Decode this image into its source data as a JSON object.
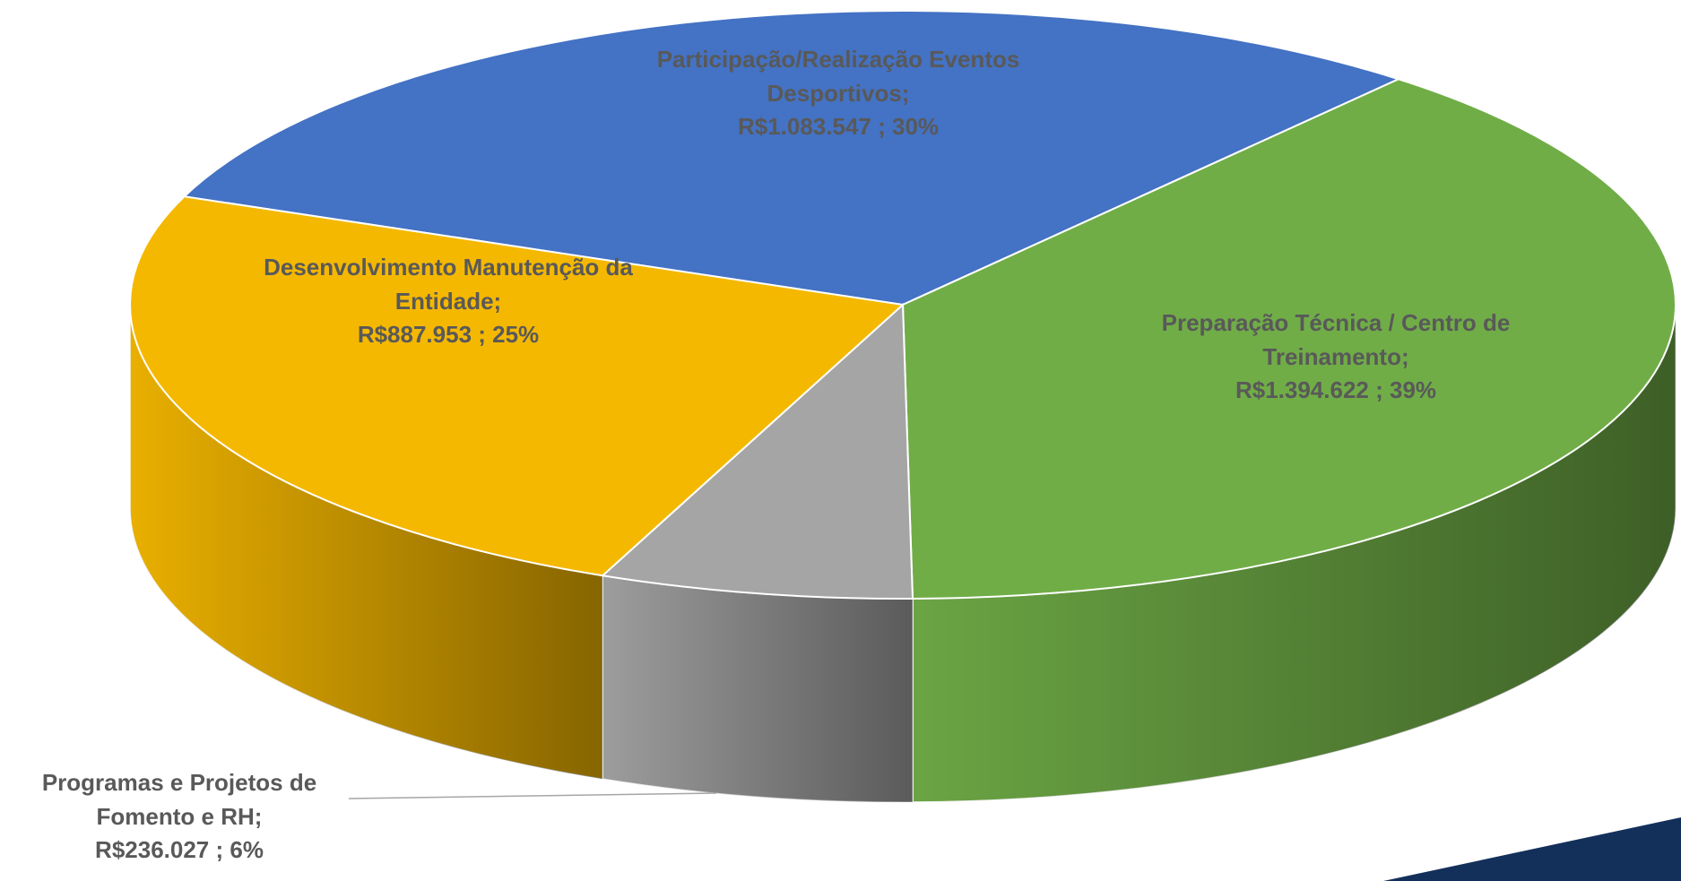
{
  "chart_data": {
    "type": "pie3d",
    "categories": [
      "Participação/Realização Eventos Desportivos;",
      "Preparação Técnica / Centro de Treinamento;",
      "Programas e Projetos de Fomento e RH;",
      "Desenvolvimento Manutenção da Entidade;"
    ],
    "values": [
      1083547,
      1394622,
      236027,
      887953
    ],
    "value_labels": [
      "R$1.083.547 ; 30%",
      "R$1.394.622 ; 39%",
      "R$236.027 ; 6%",
      "R$887.953 ; 25%"
    ],
    "colors": [
      "#4472c4",
      "#70ad47",
      "#a5a5a5",
      "#f5b800"
    ]
  }
}
